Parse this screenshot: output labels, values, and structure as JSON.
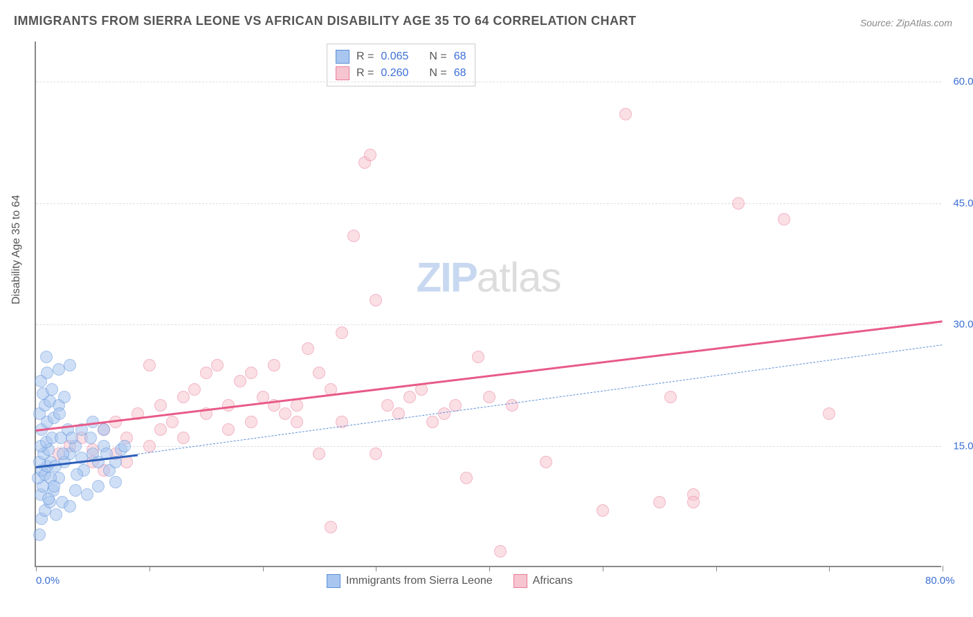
{
  "title": "IMMIGRANTS FROM SIERRA LEONE VS AFRICAN DISABILITY AGE 35 TO 64 CORRELATION CHART",
  "source": "Source: ZipAtlas.com",
  "y_axis_label": "Disability Age 35 to 64",
  "watermark": {
    "part1": "ZIP",
    "part2": "atlas"
  },
  "chart": {
    "type": "scatter",
    "xlim": [
      0,
      80
    ],
    "ylim": [
      0,
      65
    ],
    "x_ticks": [
      0,
      10,
      20,
      30,
      40,
      50,
      60,
      70,
      80
    ],
    "x_tick_labels": {
      "0": "0.0%",
      "80": "80.0%"
    },
    "y_ticks": [
      15,
      30,
      45,
      60
    ],
    "y_tick_labels": {
      "15": "15.0%",
      "30": "30.0%",
      "45": "45.0%",
      "60": "60.0%"
    },
    "background_color": "#ffffff",
    "grid_color": "#dddddd",
    "axis_color": "#888888",
    "point_radius": 9,
    "point_opacity": 0.55
  },
  "series": {
    "blue": {
      "label": "Immigrants from Sierra Leone",
      "fill": "#a8c6f0",
      "stroke": "#5b8fd8",
      "r_value": "0.065",
      "n_value": "68",
      "trend": {
        "x1": 0,
        "y1": 12.5,
        "x2": 9,
        "y2": 14,
        "color": "#2c5fba",
        "width": 3,
        "dash": false
      },
      "trend_ext": {
        "x1": 9,
        "y1": 14,
        "x2": 80,
        "y2": 27.5,
        "color": "#5b8fd8",
        "width": 1.5,
        "dash": true
      },
      "points": [
        [
          0.5,
          6
        ],
        [
          0.3,
          4
        ],
        [
          0.8,
          7
        ],
        [
          1.2,
          8
        ],
        [
          0.4,
          9
        ],
        [
          0.6,
          10
        ],
        [
          1.5,
          9.5
        ],
        [
          0.2,
          11
        ],
        [
          0.5,
          12
        ],
        [
          0.8,
          11.5
        ],
        [
          1.0,
          12.5
        ],
        [
          1.3,
          13
        ],
        [
          0.3,
          13
        ],
        [
          0.7,
          14
        ],
        [
          1.1,
          14.5
        ],
        [
          0.4,
          15
        ],
        [
          0.9,
          15.5
        ],
        [
          1.4,
          16
        ],
        [
          2.0,
          11
        ],
        [
          2.5,
          13
        ],
        [
          3.0,
          14
        ],
        [
          3.5,
          15
        ],
        [
          4.0,
          13.5
        ],
        [
          2.2,
          16
        ],
        [
          2.8,
          17
        ],
        [
          0.5,
          17
        ],
        [
          1.0,
          18
        ],
        [
          1.6,
          18.5
        ],
        [
          0.3,
          19
        ],
        [
          0.8,
          20
        ],
        [
          1.2,
          20.5
        ],
        [
          2.0,
          20
        ],
        [
          2.5,
          21
        ],
        [
          0.6,
          21.5
        ],
        [
          1.4,
          22
        ],
        [
          0.4,
          23
        ],
        [
          1.0,
          24
        ],
        [
          2.0,
          24.5
        ],
        [
          3.0,
          25
        ],
        [
          5.0,
          14
        ],
        [
          6.0,
          15
        ],
        [
          7.5,
          14.5
        ],
        [
          5.5,
          10
        ],
        [
          4.5,
          9
        ],
        [
          6.5,
          12
        ],
        [
          7.0,
          10.5
        ],
        [
          3.5,
          9.5
        ],
        [
          4.2,
          12
        ],
        [
          5.0,
          18
        ],
        [
          2.3,
          8
        ],
        [
          3.0,
          7.5
        ],
        [
          1.8,
          6.5
        ],
        [
          0.9,
          26
        ],
        [
          1.3,
          11
        ],
        [
          1.7,
          12.5
        ],
        [
          2.4,
          14
        ],
        [
          3.2,
          16
        ],
        [
          4.0,
          17
        ],
        [
          4.8,
          16
        ],
        [
          5.5,
          13
        ],
        [
          6.2,
          14
        ],
        [
          7.0,
          13
        ],
        [
          7.8,
          15
        ],
        [
          1.1,
          8.5
        ],
        [
          1.6,
          10
        ],
        [
          6.0,
          17
        ],
        [
          3.6,
          11.5
        ],
        [
          2.1,
          19
        ]
      ]
    },
    "pink": {
      "label": "Africans",
      "fill": "#f7c5d0",
      "stroke": "#e87a99",
      "r_value": "0.260",
      "n_value": "68",
      "trend": {
        "x1": 0,
        "y1": 17,
        "x2": 80,
        "y2": 30.5,
        "color": "#e85a88",
        "width": 3,
        "dash": false
      },
      "points": [
        [
          2,
          14
        ],
        [
          3,
          15
        ],
        [
          4,
          16
        ],
        [
          5,
          14.5
        ],
        [
          6,
          17
        ],
        [
          7,
          18
        ],
        [
          8,
          16
        ],
        [
          9,
          19
        ],
        [
          10,
          25
        ],
        [
          11,
          20
        ],
        [
          12,
          18
        ],
        [
          13,
          21
        ],
        [
          14,
          22
        ],
        [
          15,
          19
        ],
        [
          16,
          25
        ],
        [
          17,
          20
        ],
        [
          18,
          23
        ],
        [
          19,
          24
        ],
        [
          20,
          21
        ],
        [
          21,
          25
        ],
        [
          22,
          19
        ],
        [
          23,
          20
        ],
        [
          24,
          27
        ],
        [
          25,
          14
        ],
        [
          26,
          22
        ],
        [
          27,
          29
        ],
        [
          28,
          41
        ],
        [
          29,
          50
        ],
        [
          29.5,
          51
        ],
        [
          30,
          33
        ],
        [
          32,
          19
        ],
        [
          33,
          21
        ],
        [
          35,
          18
        ],
        [
          26,
          5
        ],
        [
          30,
          14
        ],
        [
          37,
          20
        ],
        [
          38,
          11
        ],
        [
          39,
          26
        ],
        [
          40,
          21
        ],
        [
          41,
          2
        ],
        [
          42,
          20
        ],
        [
          45,
          13
        ],
        [
          50,
          7
        ],
        [
          52,
          56
        ],
        [
          55,
          8
        ],
        [
          56,
          21
        ],
        [
          58,
          9
        ],
        [
          58,
          8
        ],
        [
          62,
          45
        ],
        [
          66,
          43
        ],
        [
          70,
          19
        ],
        [
          5,
          13
        ],
        [
          6,
          12
        ],
        [
          7,
          14
        ],
        [
          8,
          13
        ],
        [
          10,
          15
        ],
        [
          11,
          17
        ],
        [
          13,
          16
        ],
        [
          15,
          24
        ],
        [
          17,
          17
        ],
        [
          19,
          18
        ],
        [
          21,
          20
        ],
        [
          23,
          18
        ],
        [
          25,
          24
        ],
        [
          27,
          18
        ],
        [
          31,
          20
        ],
        [
          34,
          22
        ],
        [
          36,
          19
        ]
      ]
    }
  },
  "stats_legend": {
    "rows": [
      {
        "swatch_fill": "#a8c6f0",
        "swatch_stroke": "#5b8fd8",
        "r_label": "R =",
        "r_val": "0.065",
        "n_label": "N =",
        "n_val": "68"
      },
      {
        "swatch_fill": "#f7c5d0",
        "swatch_stroke": "#e87a99",
        "r_label": "R =",
        "r_val": "0.260",
        "n_label": "N =",
        "n_val": "68"
      }
    ]
  }
}
